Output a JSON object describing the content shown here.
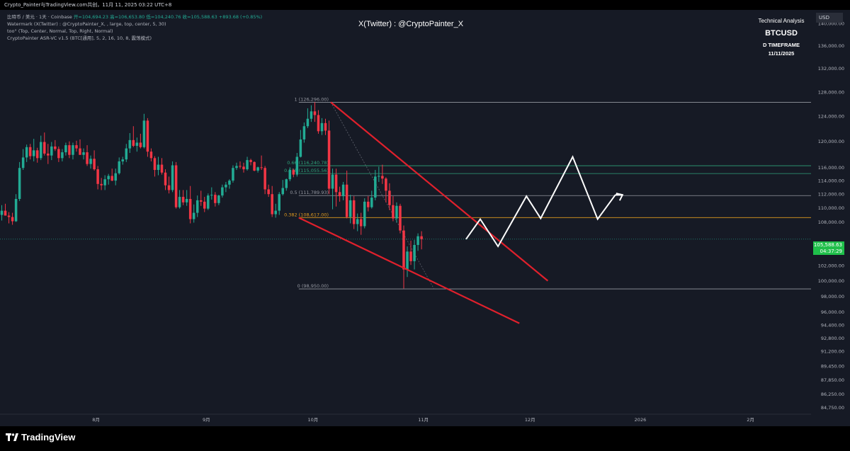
{
  "header": {
    "screenshot_title": "Crypto_Painter与TradingView.com共创，11月 11, 2025 03:22 UTC+8"
  },
  "info_panel": {
    "line1_prefix": "比特币 / 美元 · 1天 · Coinbase",
    "ohlc": "开=104,694.23  高=106,653.80  低=104,240.76  收=105,588.63  +893.68 (+0.85%)",
    "line2": "Watermark (X(Twitter) : @CryptoPainter_X, , large, top, center, 5, 30)",
    "line3": "too° (Top, Center, Normal, Top, Right, Normal)",
    "line4": "CryptoPainter ASR-VC v1.5 (BTC[通用], 5, 2, 16, 10, 8, 震荡模式)"
  },
  "watermark": "X(Twitter) : @CryptoPainter_X",
  "brand_box": {
    "subtitle": "Technical Analysis",
    "ticker": "BTCUSD",
    "timeframe": "D TIMEFRAME",
    "date": "11/11/2025"
  },
  "price_axis": {
    "currency": "USD",
    "current_price": "105,588.63",
    "countdown": "04:37:29"
  },
  "footer": {
    "brand": "TradingView"
  },
  "colors": {
    "background": "#161a25",
    "up_candle": "#22ab94",
    "down_candle": "#f23645",
    "wedge": "#e0202c",
    "fib_green": "#2ea37a",
    "fib_orange": "#e09a1e",
    "fib_gray": "#9598a1",
    "price_tag": "#1fbf4a",
    "projection": "#ffffff"
  },
  "chart_data": {
    "type": "candlestick",
    "symbol": "BTCUSD",
    "interval": "1D",
    "y_scale": "log",
    "ylim": [
      84000,
      142500
    ],
    "xlim": [
      "2025-07-05",
      "2026-02-18"
    ],
    "grid": false,
    "y_ticks": [
      "140,000.00",
      "136,000.00",
      "132,000.00",
      "128,000.00",
      "124,000.00",
      "120,000.00",
      "116,000.00",
      "114,000.00",
      "112,000.00",
      "110,000.00",
      "108,000.00",
      "104,000.00",
      "102,000.00",
      "100,000.00",
      "98,000.00",
      "96,000.00",
      "94,400.00",
      "92,800.00",
      "91,200.00",
      "89,450.00",
      "87,850.00",
      "86,250.00",
      "84,750.00"
    ],
    "x_ticks": [
      {
        "label": "8月",
        "date": "2025-08-01"
      },
      {
        "label": "9月",
        "date": "2025-09-01"
      },
      {
        "label": "10月",
        "date": "2025-10-01"
      },
      {
        "label": "11月",
        "date": "2025-11-01"
      },
      {
        "label": "12月",
        "date": "2025-12-01"
      },
      {
        "label": "2026",
        "date": "2026-01-01"
      },
      {
        "label": "2月",
        "date": "2026-02-01"
      }
    ],
    "candle_start": "2025-07-05",
    "candles": [
      [
        109000,
        110400,
        108200,
        109600
      ],
      [
        109600,
        110600,
        108900,
        108900
      ],
      [
        108900,
        109400,
        107800,
        108700
      ],
      [
        108700,
        109300,
        107600,
        108100
      ],
      [
        108100,
        112000,
        108000,
        111300
      ],
      [
        111300,
        116800,
        111000,
        115900
      ],
      [
        115900,
        118800,
        115600,
        117500
      ],
      [
        117500,
        119500,
        116800,
        119100
      ],
      [
        119100,
        119600,
        117200,
        117700
      ],
      [
        117700,
        120400,
        116900,
        118600
      ],
      [
        118600,
        119000,
        116700,
        117400
      ],
      [
        117400,
        120900,
        117100,
        119900
      ],
      [
        119900,
        121400,
        117800,
        118100
      ],
      [
        118100,
        119600,
        116500,
        117800
      ],
      [
        117800,
        119900,
        117100,
        119200
      ],
      [
        119200,
        120200,
        118500,
        118800
      ],
      [
        118800,
        119200,
        116800,
        117400
      ],
      [
        117400,
        118800,
        116900,
        118300
      ],
      [
        118300,
        119800,
        117800,
        119400
      ],
      [
        119400,
        120000,
        117400,
        117900
      ],
      [
        117900,
        119800,
        117200,
        119400
      ],
      [
        119400,
        120100,
        118400,
        118900
      ],
      [
        118900,
        120300,
        117900,
        117900
      ],
      [
        117900,
        118900,
        117200,
        118300
      ],
      [
        118300,
        119400,
        116200,
        116500
      ],
      [
        116500,
        117800,
        115800,
        117300
      ],
      [
        117300,
        118600,
        115500,
        115700
      ],
      [
        115700,
        116200,
        112700,
        113500
      ],
      [
        113500,
        114400,
        112600,
        113300
      ],
      [
        113300,
        114800,
        112600,
        114200
      ],
      [
        114200,
        115000,
        113400,
        114700
      ],
      [
        114700,
        115800,
        113900,
        114000
      ],
      [
        114000,
        115800,
        113300,
        115100
      ],
      [
        115100,
        117500,
        114900,
        116900
      ],
      [
        116900,
        117600,
        116400,
        117200
      ],
      [
        117200,
        119600,
        116800,
        118900
      ],
      [
        118900,
        121300,
        118200,
        120200
      ],
      [
        120200,
        122400,
        119100,
        119300
      ],
      [
        119300,
        120600,
        118400,
        119800
      ],
      [
        119800,
        121200,
        118900,
        119100
      ],
      [
        119100,
        124400,
        118900,
        123300
      ],
      [
        123300,
        123700,
        117600,
        118400
      ],
      [
        118400,
        118900,
        116900,
        117400
      ],
      [
        117400,
        117700,
        114600,
        115600
      ],
      [
        115600,
        117600,
        114800,
        116400
      ],
      [
        116400,
        117400,
        114900,
        115200
      ],
      [
        115200,
        115700,
        112600,
        113300
      ],
      [
        113300,
        114600,
        112100,
        112600
      ],
      [
        112600,
        116900,
        112300,
        116300
      ],
      [
        116300,
        116800,
        109900,
        110100
      ],
      [
        110100,
        112600,
        109900,
        111600
      ],
      [
        111600,
        112600,
        110400,
        110800
      ],
      [
        110800,
        112600,
        110300,
        111300
      ],
      [
        111300,
        113200,
        107800,
        108400
      ],
      [
        108400,
        110500,
        107900,
        109300
      ],
      [
        109300,
        111800,
        108700,
        111100
      ],
      [
        111100,
        112500,
        110300,
        110900
      ],
      [
        110900,
        111600,
        109400,
        109900
      ],
      [
        109900,
        112100,
        109700,
        111800
      ],
      [
        111800,
        113000,
        111200,
        111900
      ],
      [
        111900,
        112300,
        110200,
        110700
      ],
      [
        110700,
        111900,
        110400,
        111800
      ],
      [
        111800,
        113400,
        111500,
        113000
      ],
      [
        113000,
        113800,
        112300,
        113400
      ],
      [
        113400,
        114200,
        112800,
        114000
      ],
      [
        114000,
        116300,
        113700,
        115900
      ],
      [
        115900,
        116700,
        115600,
        116200
      ],
      [
        116200,
        116900,
        115800,
        116100
      ],
      [
        116100,
        116700,
        115200,
        115700
      ],
      [
        115700,
        117600,
        115500,
        117100
      ],
      [
        117100,
        117300,
        116300,
        116800
      ],
      [
        116800,
        116900,
        115400,
        115500
      ],
      [
        115500,
        116100,
        115200,
        116000
      ],
      [
        116000,
        117800,
        115600,
        115900
      ],
      [
        115900,
        116200,
        112000,
        112700
      ],
      [
        112700,
        113400,
        111600,
        112000
      ],
      [
        112000,
        113200,
        108700,
        109100
      ],
      [
        109100,
        110600,
        108600,
        109600
      ],
      [
        109600,
        112300,
        109000,
        112000
      ],
      [
        112000,
        114100,
        111800,
        112900
      ],
      [
        112900,
        114300,
        112500,
        114200
      ],
      [
        114200,
        116000,
        113900,
        115600
      ],
      [
        115600,
        115800,
        114500,
        114900
      ],
      [
        114900,
        118200,
        114600,
        117600
      ],
      [
        117600,
        121800,
        117500,
        120300
      ],
      [
        120300,
        123000,
        119800,
        122400
      ],
      [
        122400,
        125300,
        122100,
        123600
      ],
      [
        123600,
        125800,
        123100,
        124800
      ],
      [
        124800,
        126300,
        123100,
        124200
      ],
      [
        124200,
        125000,
        121200,
        121600
      ],
      [
        121600,
        123700,
        121000,
        122900
      ],
      [
        122900,
        123600,
        121000,
        121700
      ],
      [
        121700,
        123300,
        112000,
        112800
      ],
      [
        112800,
        115800,
        109800,
        114900
      ],
      [
        114900,
        115800,
        110200,
        112300
      ],
      [
        112300,
        113100,
        110900,
        111700
      ],
      [
        111700,
        113800,
        111100,
        113400
      ],
      [
        113400,
        115500,
        108500,
        108700
      ],
      [
        108700,
        111900,
        107800,
        111100
      ],
      [
        111100,
        111700,
        107000,
        107700
      ],
      [
        107700,
        109200,
        106700,
        108400
      ],
      [
        108400,
        109300,
        106200,
        107400
      ],
      [
        107400,
        111400,
        107100,
        110900
      ],
      [
        110900,
        111700,
        109500,
        110100
      ],
      [
        110100,
        112500,
        109900,
        111500
      ],
      [
        111500,
        115600,
        111100,
        114600
      ],
      [
        114600,
        116100,
        113800,
        114700
      ],
      [
        114700,
        116400,
        113500,
        114300
      ],
      [
        114300,
        114500,
        110800,
        112500
      ],
      [
        112500,
        113600,
        109700,
        110400
      ],
      [
        110400,
        111700,
        108100,
        108500
      ],
      [
        108500,
        110800,
        107900,
        110300
      ],
      [
        110300,
        110600,
        106400,
        106800
      ],
      [
        106800,
        107500,
        99000,
        101500
      ],
      [
        101500,
        104600,
        100500,
        103900
      ],
      [
        103900,
        105400,
        102100,
        102600
      ],
      [
        102600,
        105500,
        101500,
        104800
      ],
      [
        104800,
        106400,
        104000,
        106000
      ],
      [
        106000,
        106700,
        104200,
        105600
      ]
    ],
    "fibonacci": [
      {
        "ratio": "1",
        "price": 126296.0,
        "label": "1 (126,296.00)"
      },
      {
        "ratio": "0.66",
        "price": 116240.78,
        "label": "0.66 (116,240.78)"
      },
      {
        "ratio": "0.618",
        "price": 115055.56,
        "label": "0.618 (115,055.56)"
      },
      {
        "ratio": "0.5",
        "price": 111789.93,
        "label": "0.5 (111,789.93)"
      },
      {
        "ratio": "0.382",
        "price": 108617.0,
        "label": "0.382 (108,617.00)"
      },
      {
        "ratio": "0",
        "price": 98950.0,
        "label": "0 (98,950.00)"
      }
    ],
    "wedge": {
      "upper": [
        [
          "2025-10-06",
          126300
        ],
        [
          "2025-12-06",
          100000
        ]
      ],
      "lower": [
        [
          "2025-09-27",
          108600
        ],
        [
          "2025-11-28",
          94600
        ]
      ]
    },
    "projection_path": [
      [
        "2025-11-13",
        105600
      ],
      [
        "2025-11-17",
        108400
      ],
      [
        "2025-11-22",
        104600
      ],
      [
        "2025-11-30",
        111700
      ],
      [
        "2025-12-04",
        108500
      ],
      [
        "2025-12-13",
        117600
      ],
      [
        "2025-12-20",
        108400
      ],
      [
        "2025-12-25",
        111900
      ]
    ],
    "projection_arrow_tip": [
      "2025-12-27",
      111900
    ]
  }
}
